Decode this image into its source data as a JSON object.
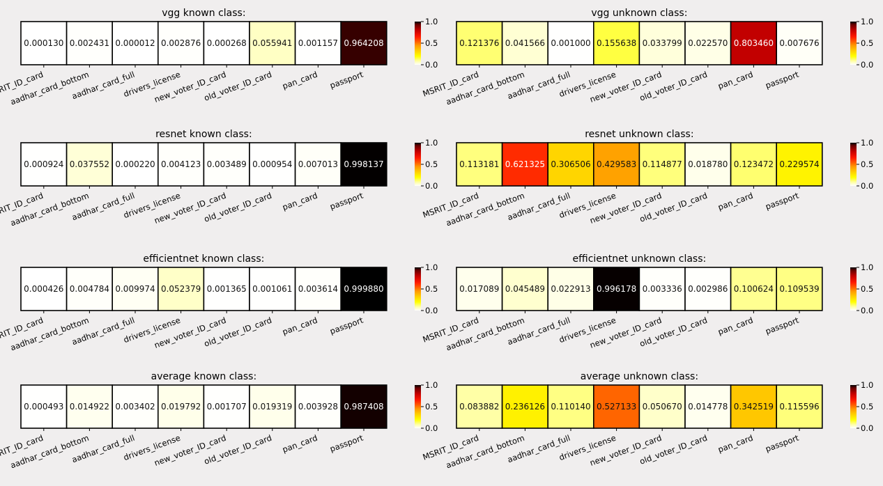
{
  "chart_data": [
    {
      "type": "heatmap",
      "title": "vgg known class:",
      "categories": [
        "MSRIT_ID_card",
        "aadhar_card_bottom",
        "aadhar_card_full",
        "drivers_license",
        "new_voter_ID_card",
        "old_voter_ID_card",
        "pan_card",
        "passport"
      ],
      "values": [
        0.00013,
        0.002431,
        1.2e-05,
        0.002876,
        0.000268,
        0.055941,
        0.001157,
        0.964208
      ],
      "value_labels": [
        "0.000130",
        "0.002431",
        "0.000012",
        "0.002876",
        "0.000268",
        "0.055941",
        "0.001157",
        "0.964208"
      ],
      "colorbar": {
        "range": [
          0.0,
          1.0
        ],
        "ticks": [
          "1.0",
          "0.5",
          "0.0"
        ],
        "colormap": "hot_r"
      }
    },
    {
      "type": "heatmap",
      "title": "vgg unknown class:",
      "categories": [
        "MSRIT_ID_card",
        "aadhar_card_bottom",
        "aadhar_card_full",
        "drivers_license",
        "new_voter_ID_card",
        "old_voter_ID_card",
        "pan_card",
        "passport"
      ],
      "values": [
        0.121376,
        0.041566,
        0.001,
        0.155638,
        0.033799,
        0.02257,
        0.80346,
        0.007676
      ],
      "value_labels": [
        "0.121376",
        "0.041566",
        "0.001000",
        "0.155638",
        "0.033799",
        "0.022570",
        "0.803460",
        "0.007676"
      ],
      "colorbar": {
        "range": [
          0.0,
          1.0
        ],
        "ticks": [
          "1.0",
          "0.5",
          "0.0"
        ],
        "colormap": "hot_r"
      }
    },
    {
      "type": "heatmap",
      "title": "resnet known class:",
      "categories": [
        "MSRIT_ID_card",
        "aadhar_card_bottom",
        "aadhar_card_full",
        "drivers_license",
        "new_voter_ID_card",
        "old_voter_ID_card",
        "pan_card",
        "passport"
      ],
      "values": [
        0.000924,
        0.037552,
        0.00022,
        0.004123,
        0.003489,
        0.000954,
        0.007013,
        0.998137
      ],
      "value_labels": [
        "0.000924",
        "0.037552",
        "0.000220",
        "0.004123",
        "0.003489",
        "0.000954",
        "0.007013",
        "0.998137"
      ],
      "colorbar": {
        "range": [
          0.0,
          1.0
        ],
        "ticks": [
          "1.0",
          "0.5",
          "0.0"
        ],
        "colormap": "hot_r"
      }
    },
    {
      "type": "heatmap",
      "title": "resnet unknown class:",
      "categories": [
        "MSRIT_ID_card",
        "aadhar_card_bottom",
        "aadhar_card_full",
        "drivers_license",
        "new_voter_ID_card",
        "old_voter_ID_card",
        "pan_card",
        "passport"
      ],
      "values": [
        0.113181,
        0.621325,
        0.306506,
        0.429583,
        0.114877,
        0.01878,
        0.123472,
        0.229574
      ],
      "value_labels": [
        "0.113181",
        "0.621325",
        "0.306506",
        "0.429583",
        "0.114877",
        "0.018780",
        "0.123472",
        "0.229574"
      ],
      "colorbar": {
        "range": [
          0.0,
          1.0
        ],
        "ticks": [
          "1.0",
          "0.5",
          "0.0"
        ],
        "colormap": "hot_r"
      }
    },
    {
      "type": "heatmap",
      "title": "efficientnet known class:",
      "categories": [
        "MSRIT_ID_card",
        "aadhar_card_bottom",
        "aadhar_card_full",
        "drivers_license",
        "new_voter_ID_card",
        "old_voter_ID_card",
        "pan_card",
        "passport"
      ],
      "values": [
        0.000426,
        0.004784,
        0.009974,
        0.052379,
        0.001365,
        0.001061,
        0.003614,
        0.99988
      ],
      "value_labels": [
        "0.000426",
        "0.004784",
        "0.009974",
        "0.052379",
        "0.001365",
        "0.001061",
        "0.003614",
        "0.999880"
      ],
      "colorbar": {
        "range": [
          0.0,
          1.0
        ],
        "ticks": [
          "1.0",
          "0.5",
          "0.0"
        ],
        "colormap": "hot_r"
      }
    },
    {
      "type": "heatmap",
      "title": "efficientnet unknown class:",
      "categories": [
        "MSRIT_ID_card",
        "aadhar_card_bottom",
        "aadhar_card_full",
        "drivers_license",
        "new_voter_ID_card",
        "old_voter_ID_card",
        "pan_card",
        "passport"
      ],
      "values": [
        0.017089,
        0.045489,
        0.022913,
        0.996178,
        0.003336,
        0.002986,
        0.100624,
        0.109539
      ],
      "value_labels": [
        "0.017089",
        "0.045489",
        "0.022913",
        "0.996178",
        "0.003336",
        "0.002986",
        "0.100624",
        "0.109539"
      ],
      "colorbar": {
        "range": [
          0.0,
          1.0
        ],
        "ticks": [
          "1.0",
          "0.5",
          "0.0"
        ],
        "colormap": "hot_r"
      }
    },
    {
      "type": "heatmap",
      "title": "average known class:",
      "categories": [
        "MSRIT_ID_card",
        "aadhar_card_bottom",
        "aadhar_card_full",
        "drivers_license",
        "new_voter_ID_card",
        "old_voter_ID_card",
        "pan_card",
        "passport"
      ],
      "values": [
        0.000493,
        0.014922,
        0.003402,
        0.019792,
        0.001707,
        0.019319,
        0.003928,
        0.987408
      ],
      "value_labels": [
        "0.000493",
        "0.014922",
        "0.003402",
        "0.019792",
        "0.001707",
        "0.019319",
        "0.003928",
        "0.987408"
      ],
      "colorbar": {
        "range": [
          0.0,
          1.0
        ],
        "ticks": [
          "1.0",
          "0.5",
          "0.0"
        ],
        "colormap": "hot_r"
      }
    },
    {
      "type": "heatmap",
      "title": "average unknown class:",
      "categories": [
        "MSRIT_ID_card",
        "aadhar_card_bottom",
        "aadhar_card_full",
        "drivers_license",
        "new_voter_ID_card",
        "old_voter_ID_card",
        "pan_card",
        "passport"
      ],
      "values": [
        0.083882,
        0.236126,
        0.11014,
        0.527133,
        0.05067,
        0.014778,
        0.342519,
        0.115596
      ],
      "value_labels": [
        "0.083882",
        "0.236126",
        "0.110140",
        "0.527133",
        "0.050670",
        "0.014778",
        "0.342519",
        "0.115596"
      ],
      "colorbar": {
        "range": [
          0.0,
          1.0
        ],
        "ticks": [
          "1.0",
          "0.5",
          "0.0"
        ],
        "colormap": "hot_r"
      }
    }
  ]
}
